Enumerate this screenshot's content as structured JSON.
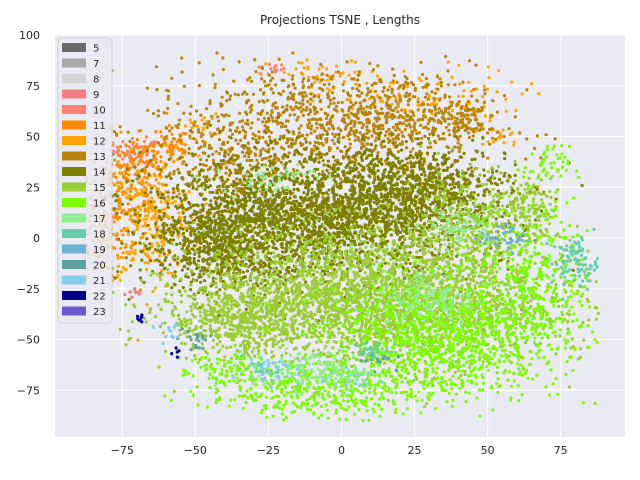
{
  "chart_data": {
    "type": "scatter",
    "title": "Projections TSNE , Lengths",
    "xlabel": "",
    "ylabel": "",
    "xlim": [
      -98,
      97
    ],
    "ylim": [
      -98,
      100
    ],
    "x_ticks": [
      -75,
      -50,
      -25,
      0,
      25,
      50,
      75
    ],
    "y_ticks": [
      100,
      75,
      50,
      25,
      0,
      -25,
      -50,
      -75
    ],
    "x_tick_labels": [
      "−75",
      "−50",
      "−25",
      "0",
      "25",
      "50",
      "75"
    ],
    "y_tick_labels": [
      "100",
      "75",
      "50",
      "25",
      "0",
      "−25",
      "−50",
      "−75"
    ],
    "grid": true,
    "background": "#eaeaf2",
    "legend_position": "top-left",
    "series": [
      {
        "name": "5",
        "color": "#696969",
        "clusters": []
      },
      {
        "name": "7",
        "color": "#a9a9a9",
        "clusters": []
      },
      {
        "name": "8",
        "color": "#d3d3d3",
        "clusters": []
      },
      {
        "name": "9",
        "color": "#f08080",
        "clusters": [
          {
            "cx": -70,
            "cy": -27,
            "sx": 2,
            "sy": 1.5,
            "n": 10
          }
        ]
      },
      {
        "name": "10",
        "color": "#fa8072",
        "clusters": [
          {
            "cx": -70,
            "cy": 43,
            "sx": 4,
            "sy": 3,
            "n": 45
          },
          {
            "cx": -25,
            "cy": 83,
            "sx": 3,
            "sy": 1.5,
            "n": 15
          }
        ]
      },
      {
        "name": "11",
        "color": "#ff8c00",
        "clusters": [
          {
            "cx": -75,
            "cy": 25,
            "sx": 7,
            "sy": 12,
            "n": 200
          },
          {
            "cx": -80,
            "cy": -5,
            "sx": 5,
            "sy": 8,
            "n": 80
          },
          {
            "cx": -58,
            "cy": 45,
            "sx": 4,
            "sy": 5,
            "n": 60
          },
          {
            "cx": -68,
            "cy": 40,
            "sx": 4,
            "sy": 4,
            "n": 50
          }
        ]
      },
      {
        "name": "12",
        "color": "#ffa500",
        "clusters": [
          {
            "cx": -65,
            "cy": 10,
            "sx": 8,
            "sy": 15,
            "n": 280
          },
          {
            "cx": 25,
            "cy": 68,
            "sx": 18,
            "sy": 8,
            "n": 120
          },
          {
            "cx": -5,
            "cy": 80,
            "sx": 10,
            "sy": 4,
            "n": 40
          },
          {
            "cx": 55,
            "cy": 50,
            "sx": 3,
            "sy": 3,
            "n": 20
          },
          {
            "cx": -48,
            "cy": 55,
            "sx": 3,
            "sy": 3,
            "n": 20
          }
        ]
      },
      {
        "name": "13",
        "color": "#b8860b",
        "clusters": [
          {
            "cx": -10,
            "cy": 55,
            "sx": 28,
            "sy": 15,
            "n": 900
          },
          {
            "cx": 20,
            "cy": 60,
            "sx": 15,
            "sy": 10,
            "n": 300
          },
          {
            "cx": -40,
            "cy": 35,
            "sx": 10,
            "sy": 10,
            "n": 150
          },
          {
            "cx": 42,
            "cy": 58,
            "sx": 4,
            "sy": 5,
            "n": 60
          }
        ]
      },
      {
        "name": "14",
        "color": "#808000",
        "clusters": [
          {
            "cx": -10,
            "cy": 10,
            "sx": 28,
            "sy": 15,
            "n": 2500
          },
          {
            "cx": 25,
            "cy": 25,
            "sx": 16,
            "sy": 10,
            "n": 700
          },
          {
            "cx": -40,
            "cy": -5,
            "sx": 12,
            "sy": 12,
            "n": 600
          }
        ]
      },
      {
        "name": "15",
        "color": "#9acd32",
        "clusters": [
          {
            "cx": 10,
            "cy": -30,
            "sx": 30,
            "sy": 17,
            "n": 3000
          },
          {
            "cx": 45,
            "cy": 5,
            "sx": 12,
            "sy": 14,
            "n": 400
          },
          {
            "cx": 65,
            "cy": 15,
            "sx": 5,
            "sy": 8,
            "n": 100
          },
          {
            "cx": -35,
            "cy": -40,
            "sx": 12,
            "sy": 8,
            "n": 400
          }
        ]
      },
      {
        "name": "16",
        "color": "#7cfc00",
        "clusters": [
          {
            "cx": 35,
            "cy": -50,
            "sx": 20,
            "sy": 15,
            "n": 1100
          },
          {
            "cx": -10,
            "cy": -75,
            "sx": 18,
            "sy": 7,
            "n": 400
          },
          {
            "cx": 65,
            "cy": -20,
            "sx": 10,
            "sy": 18,
            "n": 350
          },
          {
            "cx": -40,
            "cy": -65,
            "sx": 6,
            "sy": 5,
            "n": 80
          },
          {
            "cx": 70,
            "cy": 35,
            "sx": 4,
            "sy": 5,
            "n": 50
          }
        ]
      },
      {
        "name": "17",
        "color": "#90ee90",
        "clusters": [
          {
            "cx": -10,
            "cy": -65,
            "sx": 10,
            "sy": 5,
            "n": 150
          },
          {
            "cx": 30,
            "cy": -30,
            "sx": 8,
            "sy": 7,
            "n": 150
          },
          {
            "cx": 40,
            "cy": 5,
            "sx": 6,
            "sy": 4,
            "n": 60
          },
          {
            "cx": -25,
            "cy": 30,
            "sx": 8,
            "sy": 4,
            "n": 50
          }
        ]
      },
      {
        "name": "18",
        "color": "#66cdaa",
        "clusters": [
          {
            "cx": 80,
            "cy": -12,
            "sx": 4,
            "sy": 6,
            "n": 90
          },
          {
            "cx": 10,
            "cy": -55,
            "sx": 3,
            "sy": 2,
            "n": 30
          },
          {
            "cx": -28,
            "cy": -65,
            "sx": 3,
            "sy": 2,
            "n": 20
          }
        ]
      },
      {
        "name": "19",
        "color": "#6ab0d0",
        "clusters": [
          {
            "cx": 58,
            "cy": 0,
            "sx": 3,
            "sy": 3,
            "n": 30
          },
          {
            "cx": 48,
            "cy": 0,
            "sx": 2,
            "sy": 2,
            "n": 10
          }
        ]
      },
      {
        "name": "20",
        "color": "#5f9ea0",
        "clusters": [
          {
            "cx": -50,
            "cy": -50,
            "sx": 3,
            "sy": 4,
            "n": 20
          },
          {
            "cx": 12,
            "cy": -60,
            "sx": 3,
            "sy": 2,
            "n": 15
          }
        ]
      },
      {
        "name": "21",
        "color": "#87ceeb",
        "clusters": [
          {
            "cx": -25,
            "cy": -65,
            "sx": 6,
            "sy": 4,
            "n": 40
          },
          {
            "cx": -60,
            "cy": -45,
            "sx": 3,
            "sy": 3,
            "n": 15
          },
          {
            "cx": 5,
            "cy": -70,
            "sx": 5,
            "sy": 3,
            "n": 20
          }
        ]
      },
      {
        "name": "22",
        "color": "#00008b",
        "clusters": [
          {
            "cx": -69,
            "cy": -40,
            "sx": 1,
            "sy": 2,
            "n": 8
          },
          {
            "cx": -57,
            "cy": -58,
            "sx": 1,
            "sy": 2,
            "n": 5
          }
        ]
      },
      {
        "name": "23",
        "color": "#6a5acd",
        "clusters": []
      }
    ]
  }
}
